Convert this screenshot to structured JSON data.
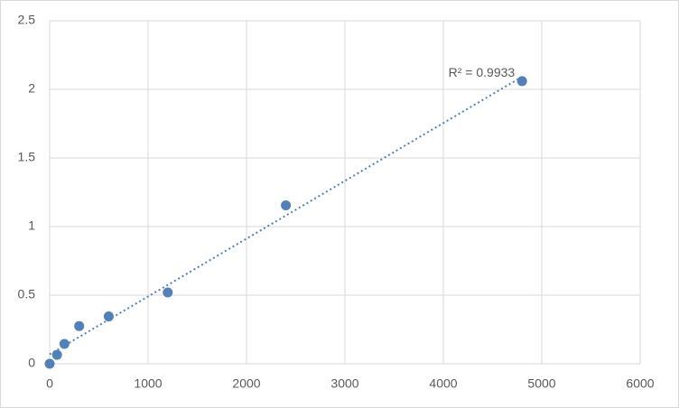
{
  "chart_data": {
    "type": "scatter",
    "x": [
      0,
      75,
      150,
      300,
      600,
      1200,
      2400,
      4800
    ],
    "values": [
      0,
      0.065,
      0.145,
      0.275,
      0.345,
      0.52,
      1.155,
      2.06
    ],
    "color": "#4f81bd",
    "trendline": "linear",
    "annotation": "R² = 0.9933",
    "xlim": [
      0,
      6000
    ],
    "xticks": [
      0,
      1000,
      2000,
      3000,
      4000,
      5000,
      6000
    ],
    "ylim": [
      0,
      2.5
    ],
    "yticks": [
      0,
      0.5,
      1,
      1.5,
      2,
      2.5
    ],
    "grid": true
  }
}
